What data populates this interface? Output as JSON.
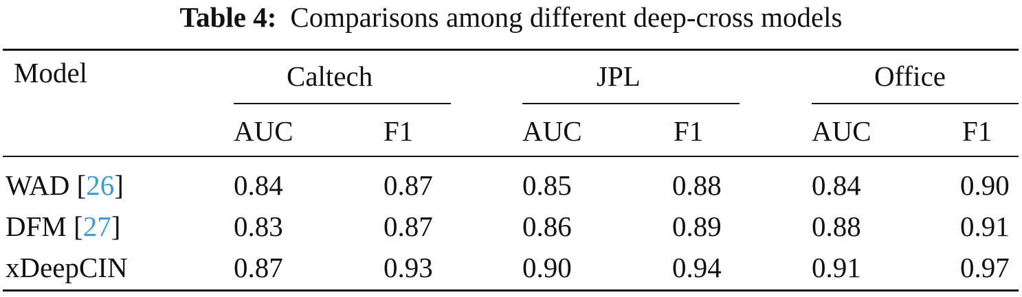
{
  "caption": {
    "label": "Table 4:",
    "text": "Comparisons among different deep-cross models"
  },
  "header": {
    "model": "Model",
    "groups": [
      "Caltech",
      "JPL",
      "Office"
    ],
    "metrics": [
      "AUC",
      "F1",
      "AUC",
      "F1",
      "AUC",
      "F1"
    ]
  },
  "rows": [
    {
      "model": "WAD [",
      "ref": "26",
      "close": "]",
      "values": [
        "0.84",
        "0.87",
        "0.85",
        "0.88",
        "0.84",
        "0.90"
      ]
    },
    {
      "model": "DFM [",
      "ref": "27",
      "close": "]",
      "values": [
        "0.83",
        "0.87",
        "0.86",
        "0.89",
        "0.88",
        "0.91"
      ]
    },
    {
      "model": "xDeepCIN",
      "values": [
        "0.87",
        "0.93",
        "0.90",
        "0.94",
        "0.91",
        "0.97"
      ]
    }
  ],
  "colors": {
    "text": "#111111",
    "citation": "#3d9bd0"
  }
}
